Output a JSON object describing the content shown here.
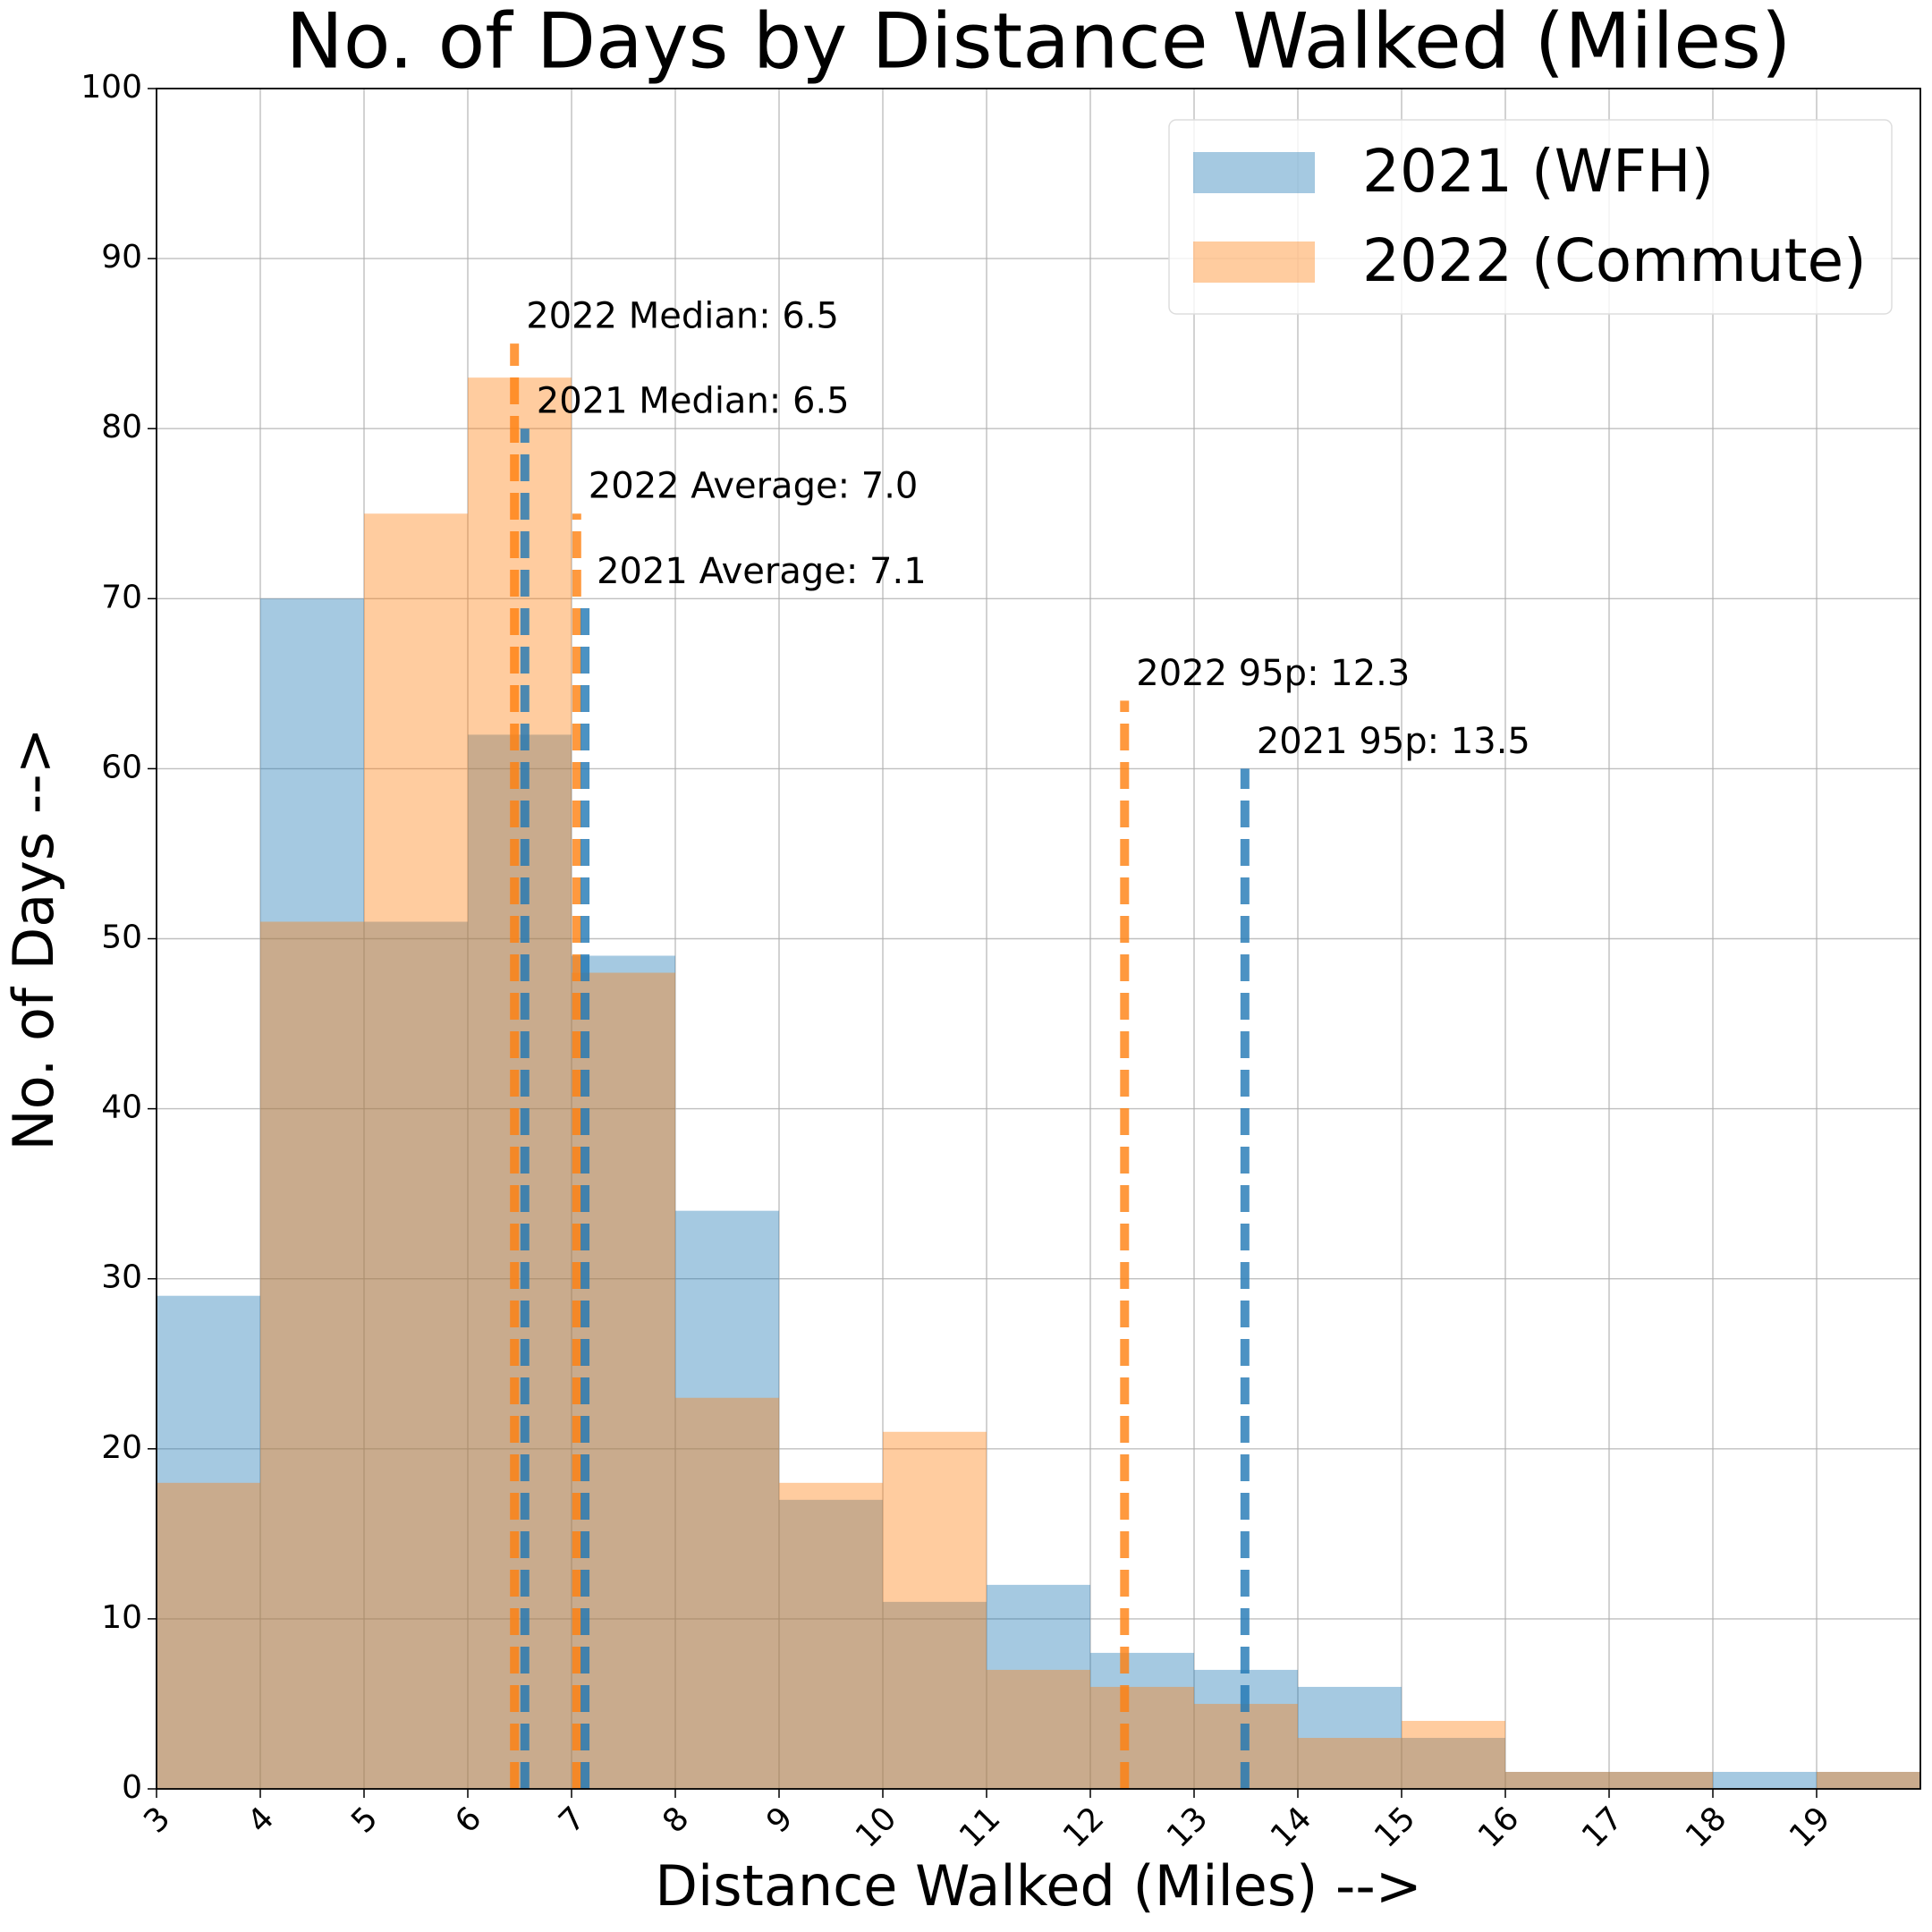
{
  "chart_data": {
    "type": "histogram",
    "title": "No. of Days by Distance Walked (Miles)",
    "x_label": "Distance Walked (Miles) -->",
    "y_label": "No. of Days -->",
    "bins": [
      3,
      4,
      5,
      6,
      7,
      8,
      9,
      10,
      11,
      12,
      13,
      14,
      15,
      16,
      17,
      18,
      19,
      20
    ],
    "series": [
      {
        "name": "2021 (WFH)",
        "color": "#1f77b4",
        "values": [
          29,
          70,
          51,
          62,
          49,
          34,
          17,
          11,
          12,
          8,
          7,
          6,
          3,
          1,
          1,
          1,
          1
        ]
      },
      {
        "name": "2022 (Commute)",
        "color": "#ff7f0e",
        "values": [
          18,
          51,
          75,
          83,
          48,
          23,
          18,
          21,
          7,
          6,
          5,
          3,
          4,
          1,
          1,
          0,
          1
        ]
      }
    ],
    "lines": [
      {
        "label": "2022 Median: 6.5",
        "x": 6.45,
        "height": 85,
        "color": "#ff7f0e"
      },
      {
        "label": "2021 Median: 6.5",
        "x": 6.55,
        "height": 80,
        "color": "#1f77b4"
      },
      {
        "label": "2022 Average: 7.0",
        "x": 7.05,
        "height": 75,
        "color": "#ff7f0e"
      },
      {
        "label": "2021 Average: 7.1",
        "x": 7.13,
        "height": 70,
        "color": "#1f77b4"
      },
      {
        "label": "2022 95p: 12.3",
        "x": 12.33,
        "height": 64,
        "color": "#ff7f0e"
      },
      {
        "label": "2021 95p: 13.5",
        "x": 13.49,
        "height": 60,
        "color": "#1f77b4"
      }
    ],
    "xlim": [
      3,
      20
    ],
    "ylim": [
      0,
      100
    ],
    "xticks": [
      3,
      4,
      5,
      6,
      7,
      8,
      9,
      10,
      11,
      12,
      13,
      14,
      15,
      16,
      17,
      18,
      19
    ],
    "yticks": [
      0,
      10,
      20,
      30,
      40,
      50,
      60,
      70,
      80,
      90,
      100
    ],
    "grid": true,
    "legend": "upper right"
  }
}
